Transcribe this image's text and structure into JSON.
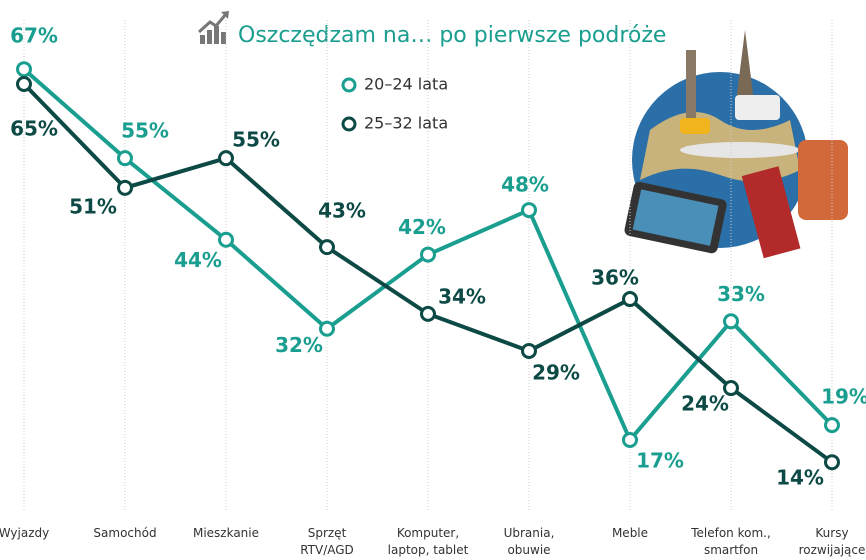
{
  "chart_data": {
    "type": "line",
    "title": "Oszczędzam na… po pierwsze podróże",
    "categories": [
      "Wyjazdy",
      "Samochód",
      "Mieszkanie",
      "Sprzęt\nRTV/AGD",
      "Komputer,\nlaptop, tablet",
      "Ubrania,\nobuwie",
      "Meble",
      "Telefon kom.,\nsmartfon",
      "Kursy\nrozwijające"
    ],
    "series": [
      {
        "name": "20–24 lata",
        "color": "#1a9e8f",
        "values": [
          67,
          55,
          44,
          32,
          42,
          48,
          17,
          33,
          19
        ],
        "value_labels": [
          "67%",
          "55%",
          "44%",
          "32%",
          "42%",
          "48%",
          "17%",
          "33%",
          "19%"
        ]
      },
      {
        "name": "25–32 lata",
        "color": "#0d4a45",
        "values": [
          65,
          51,
          55,
          43,
          34,
          29,
          36,
          24,
          14
        ],
        "value_labels": [
          "65%",
          "51%",
          "55%",
          "43%",
          "34%",
          "29%",
          "36%",
          "24%",
          "14%"
        ]
      }
    ],
    "grid": true
  }
}
